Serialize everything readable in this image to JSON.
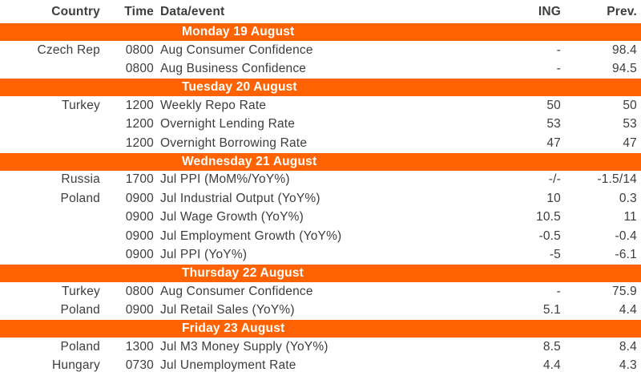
{
  "table": {
    "accent_color": "#FF6200",
    "text_color": "#3d3d3d",
    "columns": {
      "country": "Country",
      "time": "Time",
      "event": "Data/event",
      "ing": "ING",
      "prev": "Prev."
    },
    "sections": [
      {
        "day": "Monday 19 August",
        "rows": [
          {
            "country": "Czech Rep",
            "time": "0800",
            "event": "Aug Consumer Confidence",
            "ing": "-",
            "prev": "98.4"
          },
          {
            "country": "",
            "time": "0800",
            "event": "Aug Business Confidence",
            "ing": "-",
            "prev": "94.5"
          }
        ]
      },
      {
        "day": "Tuesday 20 August",
        "rows": [
          {
            "country": "Turkey",
            "time": "1200",
            "event": "Weekly Repo Rate",
            "ing": "50",
            "prev": "50"
          },
          {
            "country": "",
            "time": "1200",
            "event": "Overnight Lending Rate",
            "ing": "53",
            "prev": "53"
          },
          {
            "country": "",
            "time": "1200",
            "event": "Overnight Borrowing Rate",
            "ing": "47",
            "prev": "47"
          }
        ]
      },
      {
        "day": "Wednesday 21 August",
        "rows": [
          {
            "country": "Russia",
            "time": "1700",
            "event": "Jul PPI (MoM%/YoY%)",
            "ing": "-/-",
            "prev": "-1.5/14"
          },
          {
            "country": "Poland",
            "time": "0900",
            "event": "Jul Industrial Output (YoY%)",
            "ing": "10",
            "prev": "0.3"
          },
          {
            "country": "",
            "time": "0900",
            "event": "Jul Wage Growth (YoY%)",
            "ing": "10.5",
            "prev": "11"
          },
          {
            "country": "",
            "time": "0900",
            "event": "Jul Employment Growth (YoY%)",
            "ing": "-0.5",
            "prev": "-0.4"
          },
          {
            "country": "",
            "time": "0900",
            "event": "Jul PPI (YoY%)",
            "ing": "-5",
            "prev": "-6.1"
          }
        ]
      },
      {
        "day": "Thursday 22 August",
        "rows": [
          {
            "country": "Turkey",
            "time": "0800",
            "event": "Aug Consumer Confidence",
            "ing": "-",
            "prev": "75.9"
          },
          {
            "country": "Poland",
            "time": "0900",
            "event": "Jul Retail Sales (YoY%)",
            "ing": "5.1",
            "prev": "4.4"
          }
        ]
      },
      {
        "day": "Friday 23 August",
        "rows": [
          {
            "country": "Poland",
            "time": "1300",
            "event": "Jul M3 Money Supply (YoY%)",
            "ing": "8.5",
            "prev": "8.4"
          },
          {
            "country": "Hungary",
            "time": "0730",
            "event": "Jul Unemployment Rate",
            "ing": "4.4",
            "prev": "4.3"
          }
        ]
      }
    ]
  }
}
